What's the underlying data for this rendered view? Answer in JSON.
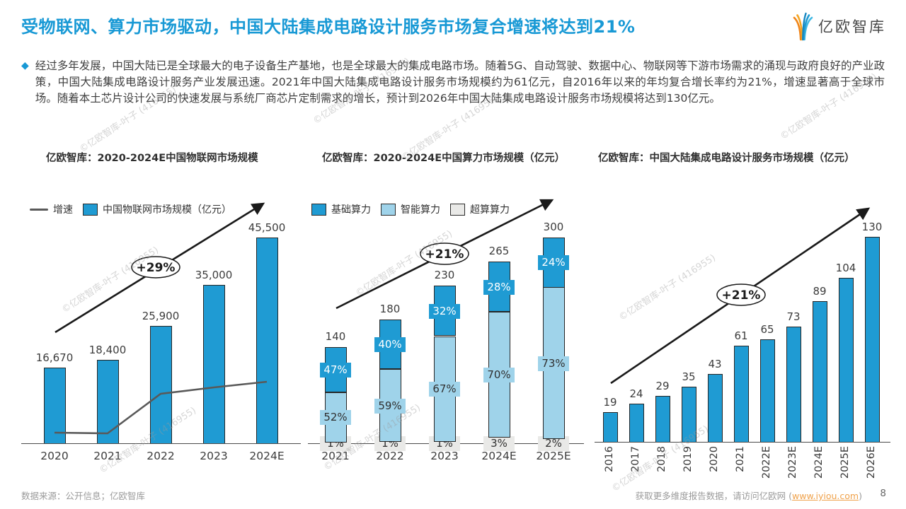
{
  "header": {
    "title": "受物联网、算力市场驱动，中国大陆集成电路设计服务市场复合增速将达到21%",
    "logo_text": "亿欧智库"
  },
  "intro": {
    "bullet": "◆",
    "text": "经过多年发展，中国大陆已是全球最大的电子设备生产基地，也是全球最大的集成电路市场。随着5G、自动驾驶、数据中心、物联网等下游市场需求的涌现与政府良好的产业政策，中国大陆集成电路设计服务产业发展迅速。2021年中国大陆集成电路设计服务市场规模约为61亿元，自2016年以来的年均复合增长率约为21%，增速显著高于全球市场。随着本土芯片设计公司的快速发展与系统厂商芯片定制需求的增长，预计到2026年中国大陆集成电路设计服务市场规模将达到130亿元。"
  },
  "colors": {
    "accent_blue": "#1899d5",
    "bar_blue": "#1f9bd3",
    "light_blue": "#9fd3ea",
    "super_gray": "#e9e9e7",
    "line_gray": "#595959",
    "arrow_black": "#1a1a1a",
    "link_orange": "#f0a24b",
    "logo_orange": "#f08519"
  },
  "watermark_text": "©亿欧智库-叶子 (416955)",
  "chart_data": [
    {
      "type": "bar",
      "title": "亿欧智库：2020-2024E中国物联网市场规模",
      "legend": [
        {
          "label": "增速",
          "swatch": "line"
        },
        {
          "label": "中国物联网市场规模（亿元）",
          "swatch": "square"
        }
      ],
      "categories": [
        "2020",
        "2021",
        "2022",
        "2023",
        "2024E"
      ],
      "values": [
        16670,
        18400,
        25900,
        35000,
        45500
      ],
      "value_labels": [
        "16,670",
        "18,400",
        "25,900",
        "35,000",
        "45,500"
      ],
      "ylim": [
        0,
        48000
      ],
      "grid": false,
      "legend_position": "top-left",
      "growth_annotation": "+29%",
      "growth_line_rel_height": [
        0.042,
        0.039,
        0.196,
        0.221,
        0.244
      ]
    },
    {
      "type": "bar",
      "subtype": "stacked",
      "title": "亿欧智库：2020-2024E中国算力市场规模（亿元）",
      "legend": [
        {
          "label": "基础算力",
          "swatch": "square",
          "color": "#1f9bd3"
        },
        {
          "label": "智能算力",
          "swatch": "square",
          "color": "#9fd3ea"
        },
        {
          "label": "超算算力",
          "swatch": "square",
          "color": "#e9e9e7"
        }
      ],
      "categories": [
        "2021",
        "2022",
        "2023",
        "2024E",
        "2025E"
      ],
      "totals": [
        140,
        180,
        230,
        265,
        300
      ],
      "series": [
        {
          "name": "超算算力",
          "color": "#e9e9e7",
          "pct": [
            1,
            1,
            1,
            3,
            2
          ]
        },
        {
          "name": "智能算力",
          "color": "#9fd3ea",
          "pct": [
            52,
            59,
            67,
            70,
            73
          ]
        },
        {
          "name": "基础算力",
          "color": "#1f9bd3",
          "pct": [
            47,
            40,
            32,
            28,
            24
          ]
        }
      ],
      "ylim": [
        0,
        310
      ],
      "grid": false,
      "legend_position": "top-left",
      "growth_annotation": "+21%"
    },
    {
      "type": "bar",
      "title": "亿欧智库：中国大陆集成电路设计服务市场规模（亿元）",
      "categories": [
        "2016",
        "2017",
        "2018",
        "2019",
        "2020",
        "2021",
        "2022E",
        "2023E",
        "2024E",
        "2025E",
        "2026E"
      ],
      "values": [
        19,
        24,
        29,
        35,
        43,
        61,
        65,
        73,
        89,
        104,
        130
      ],
      "ylim": [
        0,
        135
      ],
      "grid": false,
      "growth_annotation": "+21%"
    }
  ],
  "footer": {
    "source": "数据来源：公开信息；亿欧智库",
    "more_prefix": "获取更多维度报告数据，请访问亿欧网 (",
    "link": "www.iyiou.com",
    "more_suffix": ")",
    "page_number": "8"
  }
}
